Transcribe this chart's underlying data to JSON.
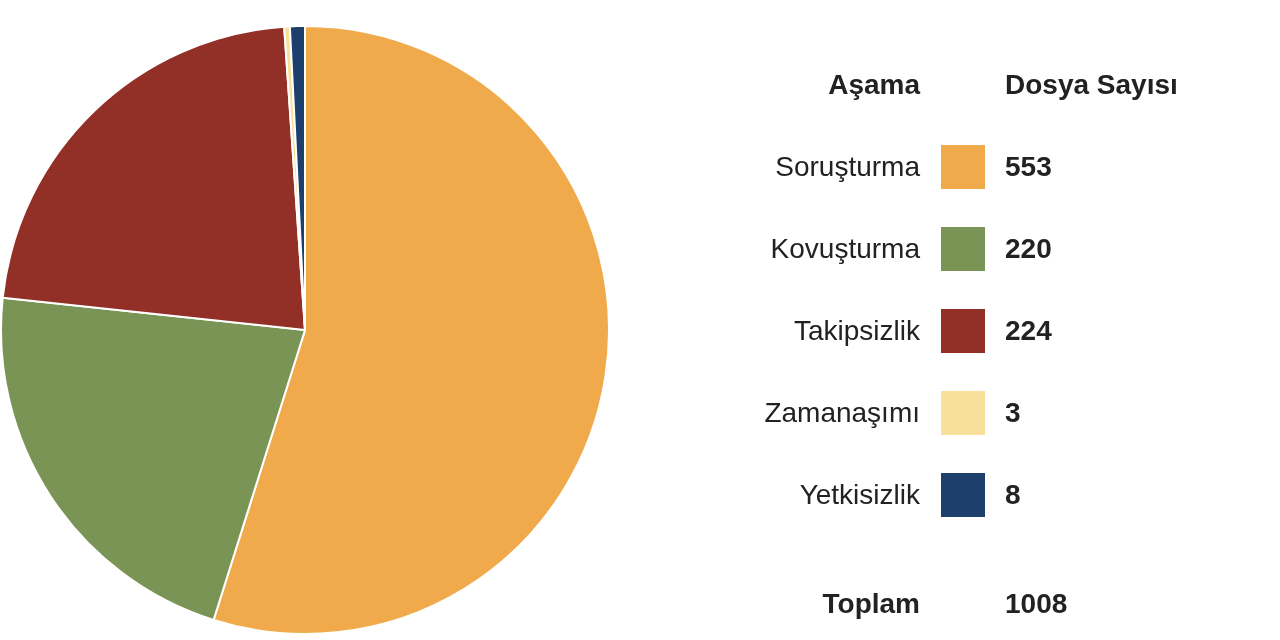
{
  "chart_data": {
    "type": "pie",
    "categories": [
      "Soruşturma",
      "Kovuşturma",
      "Takipsizlik",
      "Zamanaşımı",
      "Yetkisizlik"
    ],
    "values": [
      553,
      220,
      224,
      3,
      8
    ],
    "colors": [
      "#f0aa4c",
      "#7a9455",
      "#922f27",
      "#f8e09a",
      "#1d3f6b"
    ],
    "legend": "right",
    "legend_title": "Aşama",
    "data_labels": true,
    "annotations": [
      "Dosya Sayısı",
      "Toplam",
      "1008"
    ]
  }
}
